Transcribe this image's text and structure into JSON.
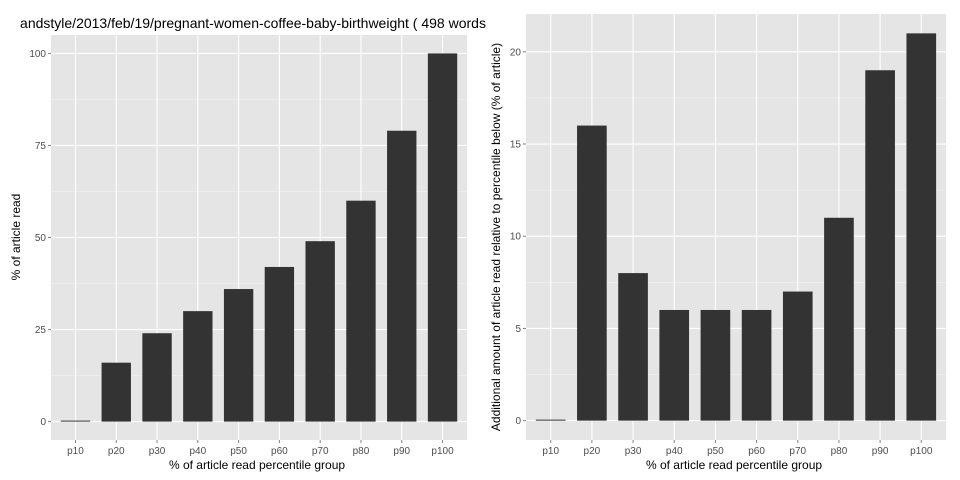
{
  "colors": {
    "panel_bg": "#e5e5e5",
    "grid_major": "#ffffff",
    "grid_minor": "#f2f2f2",
    "bar_fill": "#333333",
    "tick_text": "#4d4d4d"
  },
  "chart_data": [
    {
      "type": "bar",
      "title": "andstyle/2013/feb/19/pregnant-women-coffee-baby-birthweight ( 498 words",
      "xlabel": "% of article read percentile group",
      "ylabel": "% of article read",
      "categories": [
        "p10",
        "p20",
        "p30",
        "p40",
        "p50",
        "p60",
        "p70",
        "p80",
        "p90",
        "p100"
      ],
      "values": [
        0,
        16,
        24,
        30,
        36,
        42,
        49,
        60,
        79,
        100
      ],
      "ylim": [
        -5,
        105
      ],
      "yticks": [
        0,
        25,
        50,
        75,
        100
      ],
      "grid": true
    },
    {
      "type": "bar",
      "title": "",
      "xlabel": "% of article read percentile group",
      "ylabel": "Additional amount of article read relative to percentile below (% of article)",
      "categories": [
        "p10",
        "p20",
        "p30",
        "p40",
        "p50",
        "p60",
        "p70",
        "p80",
        "p90",
        "p100"
      ],
      "values": [
        0,
        16,
        8,
        6,
        6,
        6,
        7,
        11,
        19,
        21
      ],
      "ylim": [
        -1.05,
        22.05
      ],
      "yticks": [
        0,
        5,
        10,
        15,
        20
      ],
      "grid": true
    }
  ]
}
